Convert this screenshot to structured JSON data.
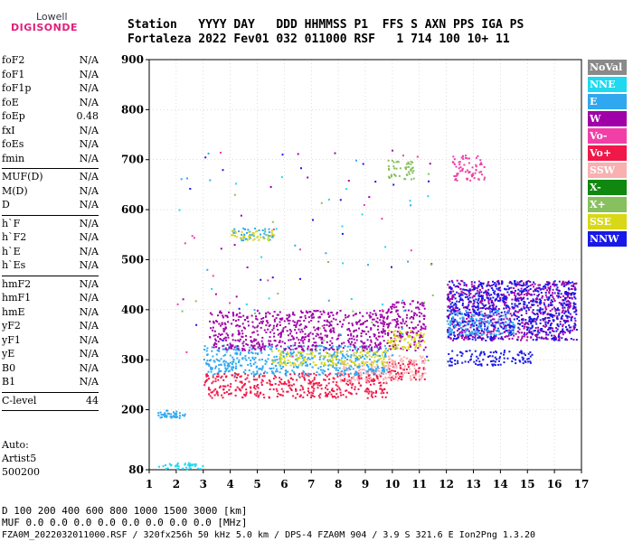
{
  "logo": {
    "line1": "Lowell",
    "line2": "DIGISONDE"
  },
  "header": {
    "row1": "Station   YYYY DAY   DDD HHMMSS P1  FFS S AXN PPS IGA PS",
    "row2": "Fortaleza 2022 Fev01 032 011000 RSF   1 714 100 10+ 11"
  },
  "params_groups": [
    [
      {
        "name": "foF2",
        "value": "N/A"
      },
      {
        "name": "foF1",
        "value": "N/A"
      },
      {
        "name": "foF1p",
        "value": "N/A"
      },
      {
        "name": "foE",
        "value": "N/A"
      },
      {
        "name": "foEp",
        "value": "0.48"
      },
      {
        "name": "fxI",
        "value": "N/A"
      },
      {
        "name": "foEs",
        "value": "N/A"
      },
      {
        "name": "fmin",
        "value": "N/A"
      }
    ],
    [
      {
        "name": "MUF(D)",
        "value": "N/A"
      },
      {
        "name": "M(D)",
        "value": "N/A"
      },
      {
        "name": "D",
        "value": "N/A"
      }
    ],
    [
      {
        "name": "h`F",
        "value": "N/A"
      },
      {
        "name": "h`F2",
        "value": "N/A"
      },
      {
        "name": "h`E",
        "value": "N/A"
      },
      {
        "name": "h`Es",
        "value": "N/A"
      }
    ],
    [
      {
        "name": "hmF2",
        "value": "N/A"
      },
      {
        "name": "hmF1",
        "value": "N/A"
      },
      {
        "name": "hmE",
        "value": "N/A"
      },
      {
        "name": "yF2",
        "value": "N/A"
      },
      {
        "name": "yF1",
        "value": "N/A"
      },
      {
        "name": "yE",
        "value": "N/A"
      },
      {
        "name": "B0",
        "value": "N/A"
      },
      {
        "name": "B1",
        "value": "N/A"
      }
    ],
    [
      {
        "name": "C-level",
        "value": "44"
      }
    ]
  ],
  "autoscale": {
    "line1": "Auto:",
    "line2": "Artist5",
    "line3": "500200"
  },
  "legend": [
    {
      "label": "NoVal",
      "color": "#8a8a8a"
    },
    {
      "label": "NNE",
      "color": "#20d8f0"
    },
    {
      "label": "E",
      "color": "#30a8f0"
    },
    {
      "label": "W",
      "color": "#a000a8"
    },
    {
      "label": "Vo-",
      "color": "#f040a8"
    },
    {
      "label": "Vo+",
      "color": "#f01848"
    },
    {
      "label": "SSW",
      "color": "#f8b0b0"
    },
    {
      "label": "X-",
      "color": "#108810"
    },
    {
      "label": "X+",
      "color": "#88c060"
    },
    {
      "label": "SSE",
      "color": "#d8d818"
    },
    {
      "label": "NNW",
      "color": "#1818e8"
    }
  ],
  "footer": {
    "row1": "D     100  200  400  600  800 1000 1500 3000 [km]",
    "row2": "MUF   0.0  0.0  0.0  0.0  0.0  0.0  0.0  0.0 [MHz]",
    "row3": "FZA0M_2022032011000.RSF / 320fx256h 50 kHz 5.0 km / DPS-4 FZA0M 904 / 3.9 S 321.6 E   Ion2Png 1.3.20"
  },
  "chart_data": {
    "type": "scatter",
    "title": "",
    "xlabel": "",
    "ylabel": "",
    "xlim": [
      1,
      17
    ],
    "ylim": [
      80,
      900
    ],
    "x_ticks": [
      1,
      2,
      3,
      4,
      5,
      6,
      7,
      8,
      9,
      10,
      11,
      12,
      13,
      14,
      15,
      16,
      17
    ],
    "y_ticks": [
      80,
      200,
      300,
      400,
      500,
      600,
      700,
      800,
      900
    ],
    "grid": true,
    "clusters": [
      {
        "color": "#20d8f0",
        "x": [
          1.3,
          3.0
        ],
        "y": [
          82,
          95
        ]
      },
      {
        "color": "#30a8f0",
        "x": [
          1.3,
          2.3
        ],
        "y": [
          185,
          200
        ]
      },
      {
        "color": "#f01848",
        "x": [
          3.0,
          9.8
        ],
        "y": [
          225,
          275
        ]
      },
      {
        "color": "#f8b0b0",
        "x": [
          8.0,
          9.8
        ],
        "y": [
          255,
          300
        ]
      },
      {
        "color": "#30a8f0",
        "x": [
          3.0,
          9.8
        ],
        "y": [
          270,
          330
        ]
      },
      {
        "color": "#d8d818",
        "x": [
          5.5,
          9.8
        ],
        "y": [
          290,
          320
        ]
      },
      {
        "color": "#a000a8",
        "x": [
          3.2,
          9.8
        ],
        "y": [
          320,
          400
        ]
      },
      {
        "color": "#f01848",
        "x": [
          9.8,
          11.2
        ],
        "y": [
          260,
          300
        ]
      },
      {
        "color": "#f8b0b0",
        "x": [
          9.8,
          11.2
        ],
        "y": [
          260,
          310
        ]
      },
      {
        "color": "#a000a8",
        "x": [
          9.8,
          11.2
        ],
        "y": [
          320,
          420
        ]
      },
      {
        "color": "#d8d818",
        "x": [
          9.8,
          11.2
        ],
        "y": [
          320,
          360
        ]
      },
      {
        "color": "#30a8f0",
        "x": [
          4.0,
          5.6
        ],
        "y": [
          540,
          565
        ]
      },
      {
        "color": "#d8d818",
        "x": [
          4.0,
          5.6
        ],
        "y": [
          540,
          560
        ]
      },
      {
        "color": "#88c060",
        "x": [
          9.8,
          10.8
        ],
        "y": [
          660,
          700
        ]
      },
      {
        "color": "#f040a8",
        "x": [
          12.2,
          13.4
        ],
        "y": [
          660,
          710
        ]
      },
      {
        "color": "#1818e8",
        "x": [
          12.0,
          15.2
        ],
        "y": [
          290,
          320
        ]
      },
      {
        "color": "#a000a8",
        "x": [
          12.0,
          16.8
        ],
        "y": [
          340,
          460
        ]
      },
      {
        "color": "#1818e8",
        "x": [
          12.0,
          16.8
        ],
        "y": [
          340,
          460
        ]
      },
      {
        "color": "#30a8f0",
        "x": [
          12.0,
          14.5
        ],
        "y": [
          350,
          400
        ]
      }
    ]
  }
}
